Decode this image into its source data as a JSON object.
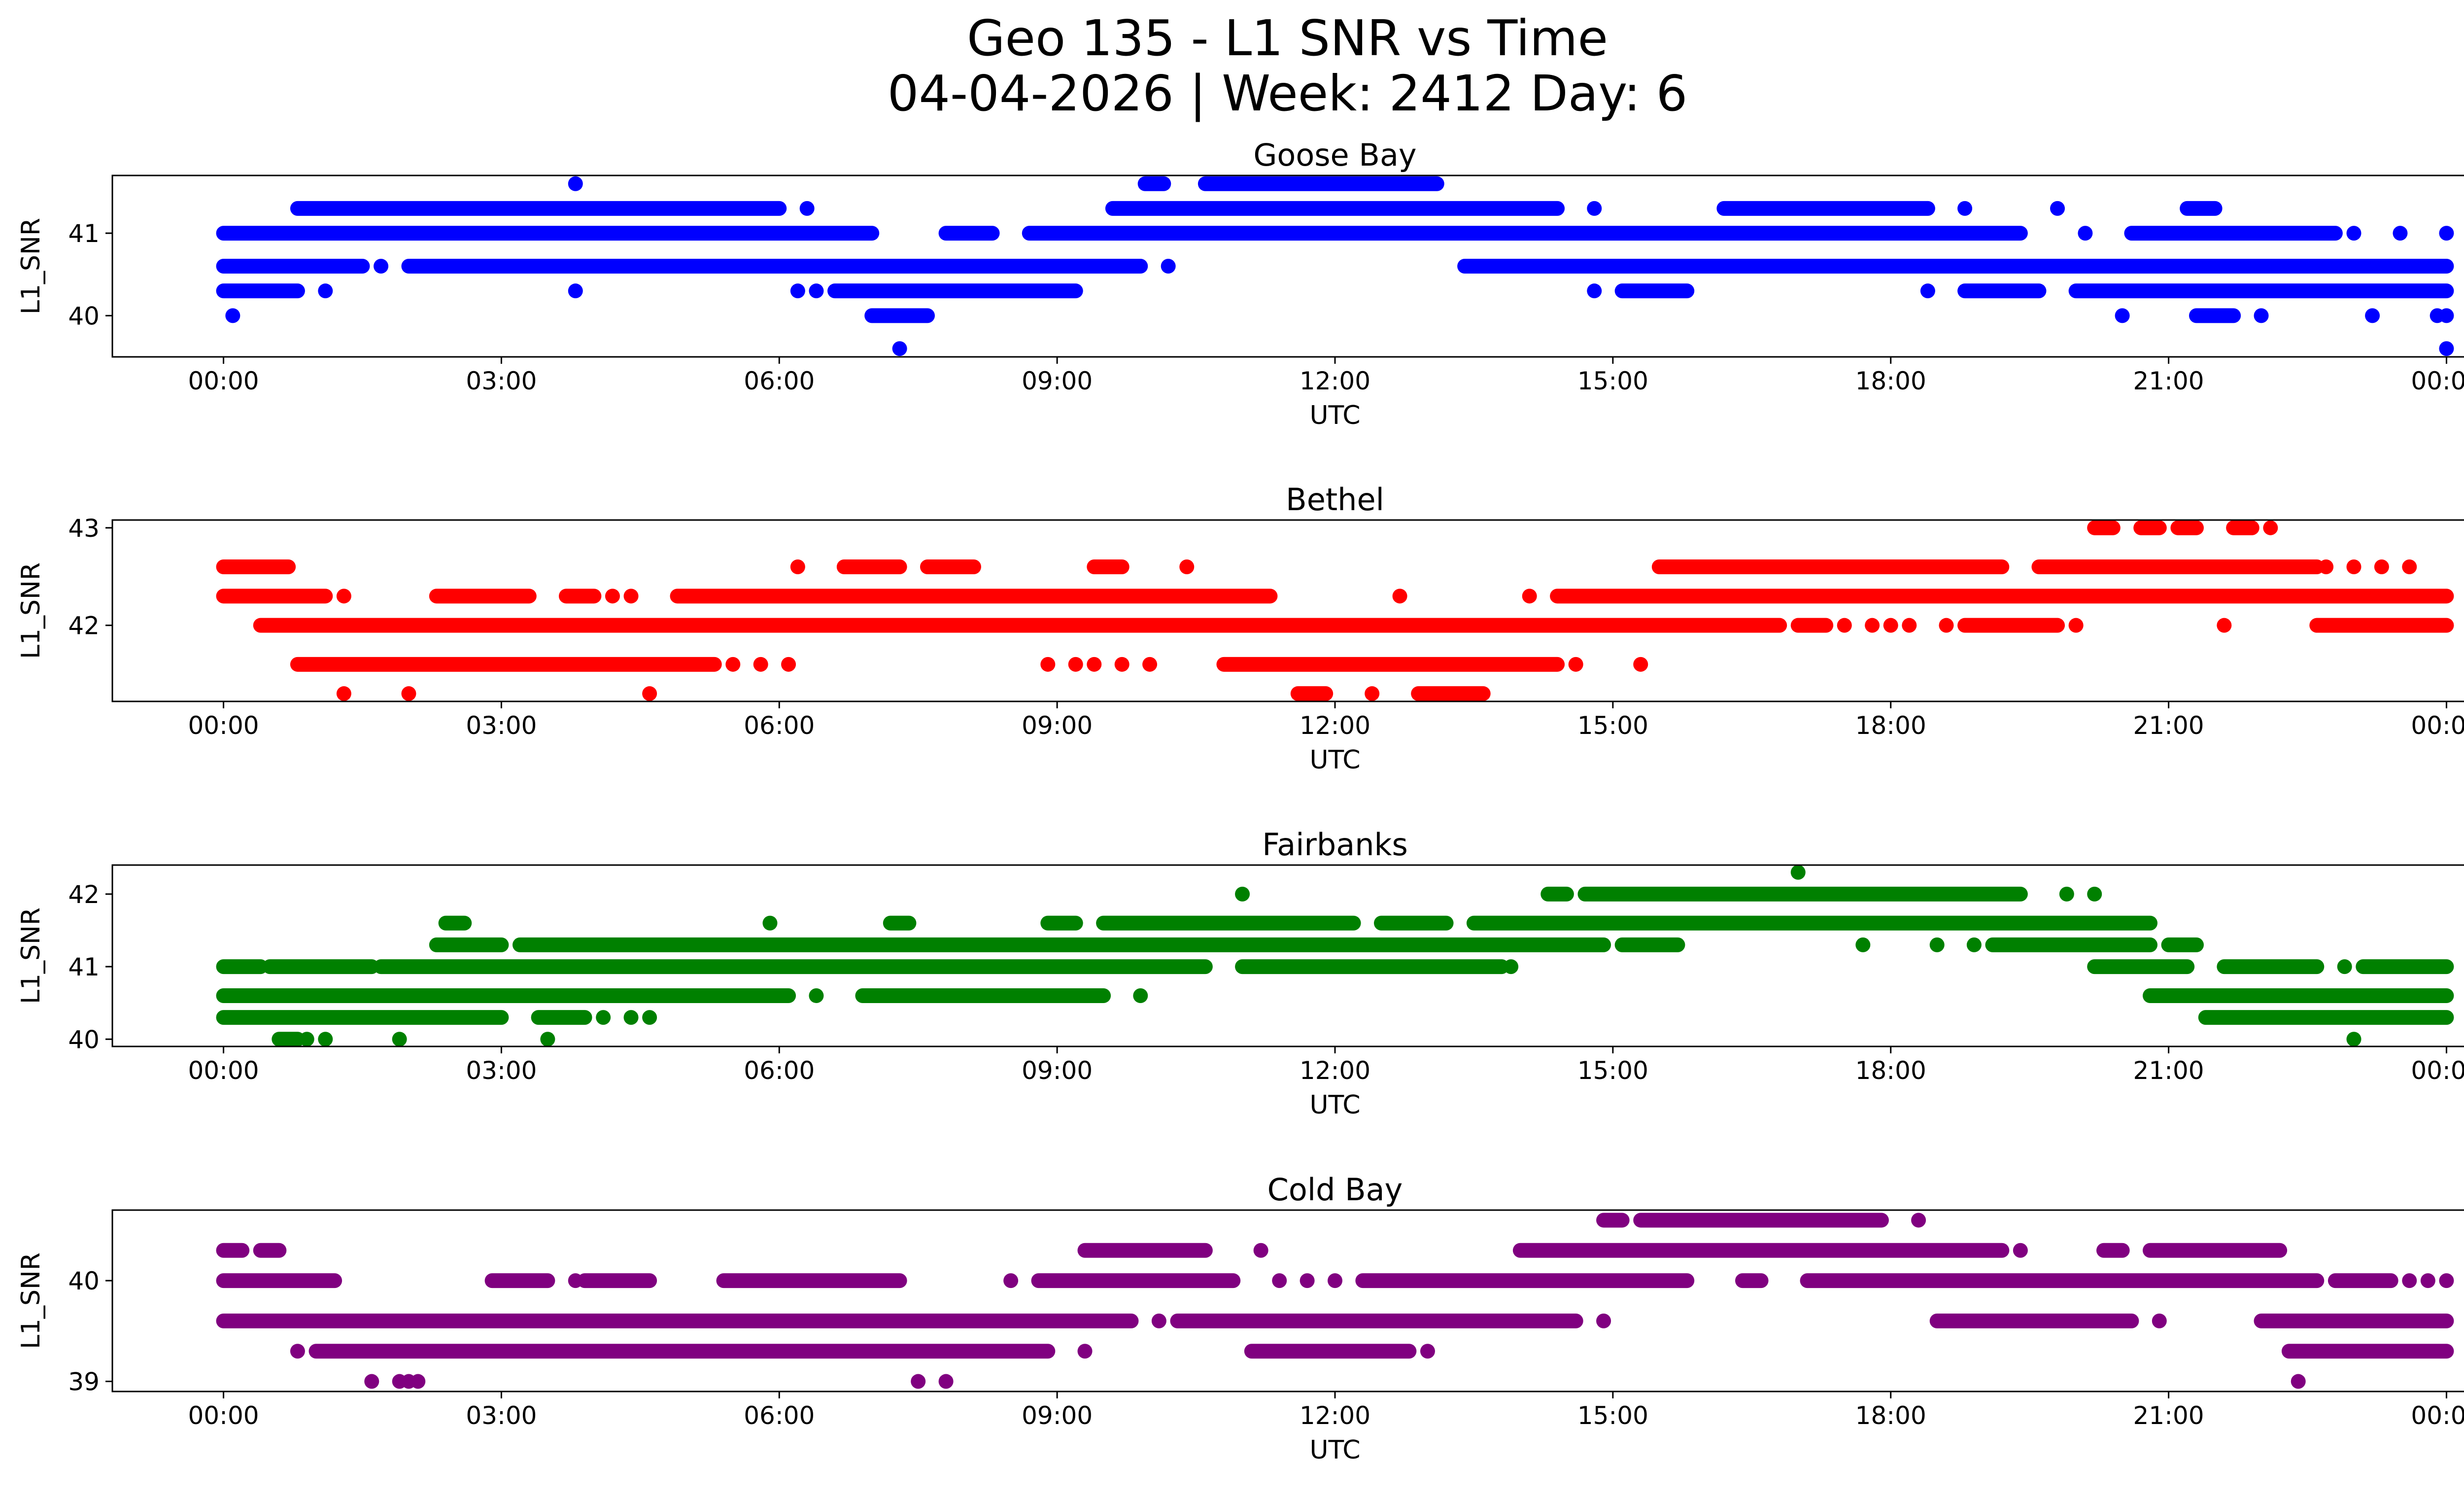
{
  "figure": {
    "title_line1": "Geo 135 - L1 SNR vs Time",
    "title_line2": "04-04-2026 | Week: 2412 Day: 6"
  },
  "chart_data": [
    {
      "type": "scatter",
      "title": "Goose Bay",
      "xlabel": "UTC",
      "ylabel": "L1_SNR",
      "color": "#0000ff",
      "xlim": [
        -1.2,
        25.2
      ],
      "ylim": [
        39.5,
        41.7
      ],
      "x_ticks": [
        0,
        3,
        6,
        9,
        12,
        15,
        18,
        21,
        24
      ],
      "x_tick_labels": [
        "00:00",
        "03:00",
        "06:00",
        "09:00",
        "12:00",
        "15:00",
        "18:00",
        "21:00",
        "00:00"
      ],
      "y_ticks": [
        40,
        41
      ],
      "y_tick_labels": [
        "40",
        "41"
      ],
      "segments": [
        {
          "y": 41.6,
          "x0": 10.6,
          "x1": 13.1
        },
        {
          "y": 41.6,
          "x0": 9.95,
          "x1": 10.15
        },
        {
          "y": 41.3,
          "x0": 0.8,
          "x1": 6.0
        },
        {
          "y": 41.3,
          "x0": 9.6,
          "x1": 14.4
        },
        {
          "y": 41.3,
          "x0": 16.2,
          "x1": 18.4
        },
        {
          "y": 41.3,
          "x0": 21.2,
          "x1": 21.5
        },
        {
          "y": 41.0,
          "x0": 0.0,
          "x1": 7.0
        },
        {
          "y": 41.0,
          "x0": 7.8,
          "x1": 8.3
        },
        {
          "y": 41.0,
          "x0": 8.7,
          "x1": 19.4
        },
        {
          "y": 41.0,
          "x0": 20.6,
          "x1": 22.8
        },
        {
          "y": 40.6,
          "x0": 0.0,
          "x1": 1.5
        },
        {
          "y": 40.6,
          "x0": 2.0,
          "x1": 9.9
        },
        {
          "y": 40.6,
          "x0": 13.4,
          "x1": 24.0
        },
        {
          "y": 40.3,
          "x0": 0.0,
          "x1": 0.8
        },
        {
          "y": 40.3,
          "x0": 6.6,
          "x1": 9.2
        },
        {
          "y": 40.3,
          "x0": 15.1,
          "x1": 15.8
        },
        {
          "y": 40.3,
          "x0": 18.8,
          "x1": 19.6
        },
        {
          "y": 40.3,
          "x0": 20.0,
          "x1": 24.0
        },
        {
          "y": 40.0,
          "x0": 7.0,
          "x1": 7.6
        },
        {
          "y": 40.0,
          "x0": 21.3,
          "x1": 21.7
        }
      ],
      "points": [
        {
          "x": 3.8,
          "y": 41.6
        },
        {
          "x": 6.3,
          "y": 41.3
        },
        {
          "x": 14.8,
          "y": 41.3
        },
        {
          "x": 18.8,
          "y": 41.3
        },
        {
          "x": 19.8,
          "y": 41.3
        },
        {
          "x": 20.1,
          "y": 41.0
        },
        {
          "x": 23.0,
          "y": 41.0
        },
        {
          "x": 23.5,
          "y": 41.0
        },
        {
          "x": 24.0,
          "y": 41.0
        },
        {
          "x": 1.7,
          "y": 40.6
        },
        {
          "x": 10.2,
          "y": 40.6
        },
        {
          "x": 1.1,
          "y": 40.3
        },
        {
          "x": 3.8,
          "y": 40.3
        },
        {
          "x": 6.2,
          "y": 40.3
        },
        {
          "x": 6.4,
          "y": 40.3
        },
        {
          "x": 14.8,
          "y": 40.3
        },
        {
          "x": 18.4,
          "y": 40.3
        },
        {
          "x": 0.1,
          "y": 40.0
        },
        {
          "x": 20.5,
          "y": 40.0
        },
        {
          "x": 22.0,
          "y": 40.0
        },
        {
          "x": 23.2,
          "y": 40.0
        },
        {
          "x": 23.9,
          "y": 40.0
        },
        {
          "x": 24.0,
          "y": 40.0
        },
        {
          "x": 7.3,
          "y": 39.6
        },
        {
          "x": 24.0,
          "y": 39.6
        }
      ]
    },
    {
      "type": "scatter",
      "title": "Bethel",
      "xlabel": "UTC",
      "ylabel": "L1_SNR",
      "color": "#ff0000",
      "xlim": [
        -1.2,
        25.2
      ],
      "ylim": [
        41.22,
        43.08
      ],
      "x_ticks": [
        0,
        3,
        6,
        9,
        12,
        15,
        18,
        21,
        24
      ],
      "x_tick_labels": [
        "00:00",
        "03:00",
        "06:00",
        "09:00",
        "12:00",
        "15:00",
        "18:00",
        "21:00",
        "00:00"
      ],
      "y_ticks": [
        42,
        43
      ],
      "y_tick_labels": [
        "42",
        "43"
      ],
      "segments": [
        {
          "y": 43.0,
          "x0": 20.2,
          "x1": 20.4
        },
        {
          "y": 43.0,
          "x0": 20.7,
          "x1": 20.9
        },
        {
          "y": 43.0,
          "x0": 21.1,
          "x1": 21.3
        },
        {
          "y": 43.0,
          "x0": 21.7,
          "x1": 21.9
        },
        {
          "y": 42.6,
          "x0": 0.0,
          "x1": 0.7
        },
        {
          "y": 42.6,
          "x0": 6.7,
          "x1": 7.3
        },
        {
          "y": 42.6,
          "x0": 7.6,
          "x1": 8.1
        },
        {
          "y": 42.6,
          "x0": 9.4,
          "x1": 9.7
        },
        {
          "y": 42.6,
          "x0": 15.5,
          "x1": 19.2
        },
        {
          "y": 42.6,
          "x0": 19.6,
          "x1": 22.6
        },
        {
          "y": 42.3,
          "x0": 0.0,
          "x1": 1.1
        },
        {
          "y": 42.3,
          "x0": 2.3,
          "x1": 3.3
        },
        {
          "y": 42.3,
          "x0": 3.7,
          "x1": 4.0
        },
        {
          "y": 42.3,
          "x0": 4.9,
          "x1": 11.3
        },
        {
          "y": 42.3,
          "x0": 14.4,
          "x1": 24.0
        },
        {
          "y": 42.0,
          "x0": 0.4,
          "x1": 16.8
        },
        {
          "y": 42.0,
          "x0": 17.0,
          "x1": 17.3
        },
        {
          "y": 42.0,
          "x0": 18.8,
          "x1": 19.8
        },
        {
          "y": 42.0,
          "x0": 22.6,
          "x1": 24.0
        },
        {
          "y": 41.6,
          "x0": 0.8,
          "x1": 5.3
        },
        {
          "y": 41.6,
          "x0": 10.8,
          "x1": 14.4
        },
        {
          "y": 41.3,
          "x0": 11.6,
          "x1": 11.9
        },
        {
          "y": 41.3,
          "x0": 12.9,
          "x1": 13.6
        }
      ],
      "points": [
        {
          "x": 22.1,
          "y": 43.0
        },
        {
          "x": 6.2,
          "y": 42.6
        },
        {
          "x": 10.4,
          "y": 42.6
        },
        {
          "x": 22.7,
          "y": 42.6
        },
        {
          "x": 23.0,
          "y": 42.6
        },
        {
          "x": 23.3,
          "y": 42.6
        },
        {
          "x": 23.6,
          "y": 42.6
        },
        {
          "x": 1.3,
          "y": 42.3
        },
        {
          "x": 4.2,
          "y": 42.3
        },
        {
          "x": 4.4,
          "y": 42.3
        },
        {
          "x": 12.7,
          "y": 42.3
        },
        {
          "x": 14.1,
          "y": 42.3
        },
        {
          "x": 17.5,
          "y": 42.0
        },
        {
          "x": 17.8,
          "y": 42.0
        },
        {
          "x": 18.0,
          "y": 42.0
        },
        {
          "x": 18.2,
          "y": 42.0
        },
        {
          "x": 18.6,
          "y": 42.0
        },
        {
          "x": 20.0,
          "y": 42.0
        },
        {
          "x": 21.6,
          "y": 42.0
        },
        {
          "x": 5.5,
          "y": 41.6
        },
        {
          "x": 5.8,
          "y": 41.6
        },
        {
          "x": 6.1,
          "y": 41.6
        },
        {
          "x": 8.9,
          "y": 41.6
        },
        {
          "x": 9.2,
          "y": 41.6
        },
        {
          "x": 9.4,
          "y": 41.6
        },
        {
          "x": 9.7,
          "y": 41.6
        },
        {
          "x": 10.0,
          "y": 41.6
        },
        {
          "x": 14.6,
          "y": 41.6
        },
        {
          "x": 15.3,
          "y": 41.6
        },
        {
          "x": 1.3,
          "y": 41.3
        },
        {
          "x": 2.0,
          "y": 41.3
        },
        {
          "x": 4.6,
          "y": 41.3
        },
        {
          "x": 12.4,
          "y": 41.3
        }
      ]
    },
    {
      "type": "scatter",
      "title": "Fairbanks",
      "xlabel": "UTC",
      "ylabel": "L1_SNR",
      "color": "#008000",
      "xlim": [
        -1.2,
        25.2
      ],
      "ylim": [
        39.9,
        42.4
      ],
      "x_ticks": [
        0,
        3,
        6,
        9,
        12,
        15,
        18,
        21,
        24
      ],
      "x_tick_labels": [
        "00:00",
        "03:00",
        "06:00",
        "09:00",
        "12:00",
        "15:00",
        "18:00",
        "21:00",
        "00:00"
      ],
      "y_ticks": [
        40,
        41,
        42
      ],
      "y_tick_labels": [
        "40",
        "41",
        "42"
      ],
      "segments": [
        {
          "y": 42.0,
          "x0": 14.3,
          "x1": 14.5
        },
        {
          "y": 42.0,
          "x0": 14.7,
          "x1": 19.4
        },
        {
          "y": 41.6,
          "x0": 2.4,
          "x1": 2.6
        },
        {
          "y": 41.6,
          "x0": 7.2,
          "x1": 7.4
        },
        {
          "y": 41.6,
          "x0": 8.9,
          "x1": 9.2
        },
        {
          "y": 41.6,
          "x0": 9.5,
          "x1": 12.2
        },
        {
          "y": 41.6,
          "x0": 12.5,
          "x1": 13.2
        },
        {
          "y": 41.6,
          "x0": 13.5,
          "x1": 20.8
        },
        {
          "y": 41.3,
          "x0": 2.3,
          "x1": 3.0
        },
        {
          "y": 41.3,
          "x0": 3.2,
          "x1": 14.9
        },
        {
          "y": 41.3,
          "x0": 15.1,
          "x1": 15.7
        },
        {
          "y": 41.3,
          "x0": 19.1,
          "x1": 20.8
        },
        {
          "y": 41.3,
          "x0": 21.0,
          "x1": 21.3
        },
        {
          "y": 41.0,
          "x0": 0.0,
          "x1": 0.4
        },
        {
          "y": 41.0,
          "x0": 0.5,
          "x1": 1.6
        },
        {
          "y": 41.0,
          "x0": 1.7,
          "x1": 10.6
        },
        {
          "y": 41.0,
          "x0": 11.0,
          "x1": 13.8
        },
        {
          "y": 41.0,
          "x0": 20.2,
          "x1": 21.2
        },
        {
          "y": 41.0,
          "x0": 21.6,
          "x1": 22.6
        },
        {
          "y": 41.0,
          "x0": 23.1,
          "x1": 24.0
        },
        {
          "y": 40.6,
          "x0": 0.0,
          "x1": 6.1
        },
        {
          "y": 40.6,
          "x0": 6.9,
          "x1": 9.5
        },
        {
          "y": 40.6,
          "x0": 20.8,
          "x1": 24.0
        },
        {
          "y": 40.3,
          "x0": 0.0,
          "x1": 3.0
        },
        {
          "y": 40.3,
          "x0": 3.4,
          "x1": 3.9
        },
        {
          "y": 40.3,
          "x0": 21.4,
          "x1": 24.0
        },
        {
          "y": 40.0,
          "x0": 0.6,
          "x1": 0.8
        }
      ],
      "points": [
        {
          "x": 17.0,
          "y": 42.3
        },
        {
          "x": 11.0,
          "y": 42.0
        },
        {
          "x": 19.9,
          "y": 42.0
        },
        {
          "x": 20.2,
          "y": 42.0
        },
        {
          "x": 5.9,
          "y": 41.6
        },
        {
          "x": 17.7,
          "y": 41.3
        },
        {
          "x": 18.5,
          "y": 41.3
        },
        {
          "x": 18.9,
          "y": 41.3
        },
        {
          "x": 13.9,
          "y": 41.0
        },
        {
          "x": 22.9,
          "y": 41.0
        },
        {
          "x": 6.4,
          "y": 40.6
        },
        {
          "x": 9.9,
          "y": 40.6
        },
        {
          "x": 4.1,
          "y": 40.3
        },
        {
          "x": 4.4,
          "y": 40.3
        },
        {
          "x": 4.6,
          "y": 40.3
        },
        {
          "x": 0.9,
          "y": 40.0
        },
        {
          "x": 1.1,
          "y": 40.0
        },
        {
          "x": 1.9,
          "y": 40.0
        },
        {
          "x": 3.5,
          "y": 40.0
        },
        {
          "x": 23.0,
          "y": 40.0
        }
      ]
    },
    {
      "type": "scatter",
      "title": "Cold Bay",
      "xlabel": "UTC",
      "ylabel": "L1_SNR",
      "color": "#800080",
      "xlim": [
        -1.2,
        25.2
      ],
      "ylim": [
        38.9,
        40.7
      ],
      "x_ticks": [
        0,
        3,
        6,
        9,
        12,
        15,
        18,
        21,
        24
      ],
      "x_tick_labels": [
        "00:00",
        "03:00",
        "06:00",
        "09:00",
        "12:00",
        "15:00",
        "18:00",
        "21:00",
        "00:00"
      ],
      "y_ticks": [
        39,
        40
      ],
      "y_tick_labels": [
        "39",
        "40"
      ],
      "segments": [
        {
          "y": 40.6,
          "x0": 14.9,
          "x1": 15.1
        },
        {
          "y": 40.6,
          "x0": 15.3,
          "x1": 17.9
        },
        {
          "y": 40.3,
          "x0": 0.0,
          "x1": 0.2
        },
        {
          "y": 40.3,
          "x0": 0.4,
          "x1": 0.6
        },
        {
          "y": 40.3,
          "x0": 9.3,
          "x1": 10.6
        },
        {
          "y": 40.3,
          "x0": 14.0,
          "x1": 19.2
        },
        {
          "y": 40.3,
          "x0": 20.3,
          "x1": 20.5
        },
        {
          "y": 40.3,
          "x0": 20.8,
          "x1": 22.2
        },
        {
          "y": 40.0,
          "x0": 0.0,
          "x1": 1.2
        },
        {
          "y": 40.0,
          "x0": 2.9,
          "x1": 3.5
        },
        {
          "y": 40.0,
          "x0": 3.9,
          "x1": 4.6
        },
        {
          "y": 40.0,
          "x0": 5.4,
          "x1": 7.3
        },
        {
          "y": 40.0,
          "x0": 8.8,
          "x1": 10.9
        },
        {
          "y": 40.0,
          "x0": 12.3,
          "x1": 15.8
        },
        {
          "y": 40.0,
          "x0": 16.4,
          "x1": 16.6
        },
        {
          "y": 40.0,
          "x0": 17.1,
          "x1": 22.6
        },
        {
          "y": 40.0,
          "x0": 22.8,
          "x1": 23.4
        },
        {
          "y": 39.6,
          "x0": 0.0,
          "x1": 9.8
        },
        {
          "y": 39.6,
          "x0": 10.3,
          "x1": 14.6
        },
        {
          "y": 39.6,
          "x0": 18.5,
          "x1": 20.6
        },
        {
          "y": 39.6,
          "x0": 22.0,
          "x1": 24.0
        },
        {
          "y": 39.3,
          "x0": 1.0,
          "x1": 8.9
        },
        {
          "y": 39.3,
          "x0": 11.1,
          "x1": 12.8
        },
        {
          "y": 39.3,
          "x0": 22.3,
          "x1": 24.0
        }
      ],
      "points": [
        {
          "x": 18.3,
          "y": 40.6
        },
        {
          "x": 11.2,
          "y": 40.3
        },
        {
          "x": 19.4,
          "y": 40.3
        },
        {
          "x": 3.8,
          "y": 40.0
        },
        {
          "x": 8.5,
          "y": 40.0
        },
        {
          "x": 11.4,
          "y": 40.0
        },
        {
          "x": 11.7,
          "y": 40.0
        },
        {
          "x": 12.0,
          "y": 40.0
        },
        {
          "x": 23.6,
          "y": 40.0
        },
        {
          "x": 23.8,
          "y": 40.0
        },
        {
          "x": 24.0,
          "y": 40.0
        },
        {
          "x": 10.1,
          "y": 39.6
        },
        {
          "x": 14.9,
          "y": 39.6
        },
        {
          "x": 20.9,
          "y": 39.6
        },
        {
          "x": 0.8,
          "y": 39.3
        },
        {
          "x": 9.3,
          "y": 39.3
        },
        {
          "x": 13.0,
          "y": 39.3
        },
        {
          "x": 1.6,
          "y": 39.0
        },
        {
          "x": 1.9,
          "y": 39.0
        },
        {
          "x": 2.0,
          "y": 39.0
        },
        {
          "x": 2.1,
          "y": 39.0
        },
        {
          "x": 7.5,
          "y": 39.0
        },
        {
          "x": 7.8,
          "y": 39.0
        },
        {
          "x": 22.4,
          "y": 39.0
        }
      ]
    }
  ]
}
